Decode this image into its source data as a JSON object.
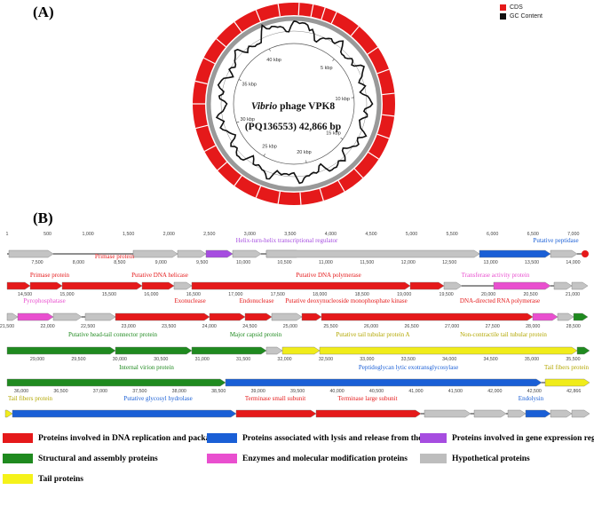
{
  "panel_a_label": "(A)",
  "panel_b_label": "(B)",
  "top_legend": [
    {
      "label": "CDS",
      "color": "#e5191a"
    },
    {
      "label": "GC Content",
      "color": "#111111"
    }
  ],
  "map": {
    "title_italic": "Vibrio",
    "title_rest": " phage VPK8",
    "subtitle": "(PQ136553) 42,866 bp",
    "ticks": [
      "5 kbp",
      "10 kbp",
      "15 kbp",
      "20 kbp",
      "25 kbp",
      "30 kbp",
      "35 kbp",
      "40 kbp"
    ]
  },
  "linear": {
    "rows": [
      {
        "ruler_top": [
          "1",
          "500",
          "1,000",
          "1,500",
          "2,000",
          "2,500",
          "3,000",
          "3,500",
          "4,000",
          "4,500",
          "5,000",
          "5,500",
          "6,000",
          "6,500",
          "7,000"
        ],
        "ruler_bottom": [
          "7,500",
          "8,000",
          "8,500",
          "9,000",
          "9,500",
          "10,000",
          "10,500",
          "11,000",
          "11,500",
          "12,000",
          "12,500",
          "13,000",
          "13,500",
          "14,000"
        ]
      },
      {
        "ruler_bottom": [
          "14,500",
          "15,000",
          "15,500",
          "16,000",
          "16,500",
          "17,000",
          "17,500",
          "18,000",
          "18,500",
          "19,000",
          "19,500",
          "20,000",
          "20,500",
          "21,000"
        ]
      },
      {
        "ruler_bottom": [
          "21,500",
          "22,000",
          "22,500",
          "23,000",
          "23,500",
          "24,000",
          "24,500",
          "25,000",
          "25,500",
          "26,000",
          "26,500",
          "27,000",
          "27,500",
          "28,000",
          "28,500"
        ]
      },
      {
        "ruler_bottom": [
          "29,000",
          "29,500",
          "30,000",
          "30,500",
          "31,000",
          "31,500",
          "32,000",
          "32,500",
          "33,000",
          "33,500",
          "34,000",
          "34,500",
          "35,000",
          "35,500"
        ]
      },
      {
        "ruler_bottom": [
          "36,000",
          "36,500",
          "37,000",
          "37,500",
          "38,000",
          "38,500",
          "39,000",
          "39,500",
          "40,000",
          "40,500",
          "41,000",
          "41,500",
          "42,000",
          "42,500",
          "42,866"
        ]
      }
    ],
    "annotations": {
      "helix": "Helix-turn-helix transcriptional regulator",
      "peptidase": "Putative peptidase",
      "primase1": "Primase protein",
      "primase2": "Primase protein",
      "dna_helicase": "Putative DNA helicase",
      "dna_polymerase": "Putative DNA polymerase",
      "transferase": "Transferase activity protein",
      "pyrophosphatase": "Pyrophosphatase",
      "exonuclease": "Exonuclease",
      "endonuclease": "Endonuclease",
      "deoxynucleoside": "Putative deoxynucleoside monophosphate kinase",
      "rna_polymerase": "DNA-directed RNA polymerase",
      "head_tail": "Putative head-tail connector protein",
      "major_capsid": "Major capsid protein",
      "tail_tubular_a": "Putative tail tubular protein A",
      "noncontractile": "Non-contractile tail tubular protein",
      "internal_virion": "Internal virion protein",
      "peptidoglycan": "Peptidoglycan lytic exotransglycosylase",
      "tail_fibers1": "Tail fibers protein",
      "tail_fibers2": "Tail fibers protein",
      "glycosyl": "Putative glycosyl hydrolase",
      "terminase_small": "Terminase small subunit",
      "terminase_large": "Terminase large subunit",
      "endolysin": "Endolysin"
    }
  },
  "bottom_legend": [
    {
      "label": "Proteins involved in DNA replication and packaging",
      "color": "#e5191a"
    },
    {
      "label": "Proteins associated with lysis and release from the host",
      "color": "#1a5fd6"
    },
    {
      "label": "Proteins involved in gene expression regulation",
      "color": "#a64de0"
    },
    {
      "label": "Structural and assembly proteins",
      "color": "#1f8a1f"
    },
    {
      "label": "Enzymes and molecular modification proteins",
      "color": "#e94fcf"
    },
    {
      "label": "Hypothetical proteins",
      "color": "#bdbdbd"
    },
    {
      "label": "Tail proteins",
      "color": "#f5f21a"
    }
  ]
}
